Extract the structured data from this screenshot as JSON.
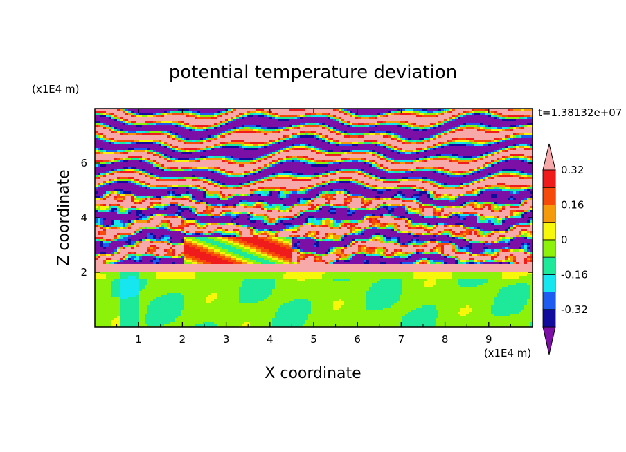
{
  "chart_data": {
    "type": "heatmap",
    "title": "potential temperature deviation",
    "xlabel": "X coordinate",
    "ylabel": "Z coordinate",
    "x_unit": "(x1E4 m)",
    "z_unit": "(x1E4 m)",
    "time_label": "t=1.38132e+07",
    "xlim": [
      0,
      10
    ],
    "zlim": [
      0,
      8
    ],
    "x_ticks": [
      "1",
      "2",
      "3",
      "4",
      "5",
      "6",
      "7",
      "8",
      "9"
    ],
    "z_ticks": [
      "2",
      "4",
      "6"
    ],
    "colorbar": {
      "levels": [
        -0.4,
        -0.32,
        -0.24,
        -0.16,
        -0.08,
        0,
        0.08,
        0.16,
        0.24,
        0.32,
        0.4
      ],
      "labels": [
        "0.32",
        "0.16",
        "0",
        "-0.16",
        "-0.32"
      ],
      "colors": [
        "#7b0fa6",
        "#120c9c",
        "#1c5cf0",
        "#16e6f0",
        "#1ee89a",
        "#8cf20a",
        "#f7f70c",
        "#f59a0a",
        "#f54a0a",
        "#f01c1c",
        "#f7a8a8"
      ]
    }
  }
}
